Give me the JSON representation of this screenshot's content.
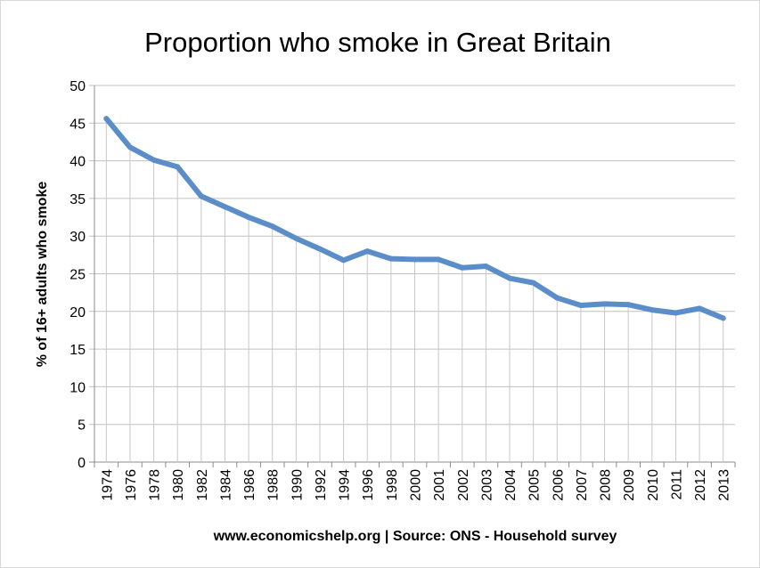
{
  "chart_data": {
    "type": "line",
    "title": "Proportion who smoke in Great Britain",
    "ylabel": "% of 16+ adults who smoke",
    "xlabel": "",
    "source_note": "www.economicshelp.org | Source: ONS - Household survey",
    "ylim": [
      0,
      50
    ],
    "yticks": [
      0,
      5,
      10,
      15,
      20,
      25,
      30,
      35,
      40,
      45,
      50
    ],
    "grid": true,
    "legend": "none",
    "categories": [
      "1974",
      "1976",
      "1978",
      "1980",
      "1982",
      "1984",
      "1986",
      "1988",
      "1990",
      "1992",
      "1994",
      "1996",
      "1998",
      "2000",
      "2001",
      "2002",
      "2003",
      "2004",
      "2005",
      "2006",
      "2007",
      "2008",
      "2009",
      "2010",
      "2011",
      "2012",
      "2013"
    ],
    "values": [
      45.6,
      41.8,
      40.1,
      39.2,
      35.3,
      33.9,
      32.5,
      31.3,
      29.7,
      28.3,
      26.8,
      28.0,
      27.0,
      26.9,
      26.9,
      25.8,
      26.0,
      24.4,
      23.8,
      21.8,
      20.8,
      21.0,
      20.9,
      20.2,
      19.8,
      20.4,
      19.1
    ],
    "line_color": "#5b8ec9",
    "grid_color": "#c0c0c0"
  }
}
